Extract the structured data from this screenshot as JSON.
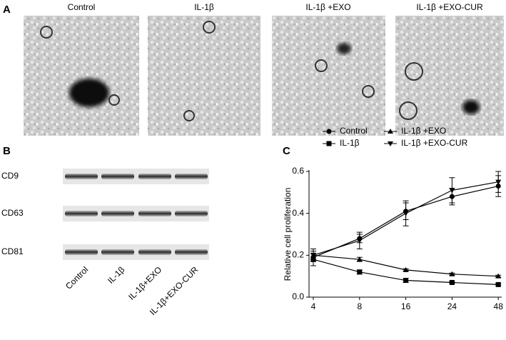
{
  "panels": {
    "a": {
      "label": "A",
      "images": [
        {
          "caption": "Control"
        },
        {
          "caption": "IL-1β"
        },
        {
          "caption": "IL-1β +EXO"
        },
        {
          "caption": "IL-1β +EXO-CUR"
        }
      ]
    },
    "b": {
      "label": "B",
      "markers": [
        "CD9",
        "CD63",
        "CD81"
      ],
      "lanes": [
        "Control",
        "IL-1β",
        "IL-1β+EXO",
        "IL-1β+EXO-CUR"
      ]
    }
  },
  "chart_data": {
    "type": "line",
    "panel_label": "C",
    "ylabel": "Relative cell proliferation",
    "categories": [
      "4",
      "8",
      "16",
      "24",
      "48"
    ],
    "ylim": [
      0,
      0.6
    ],
    "yticks": [
      {
        "value": 0,
        "label": "0.0"
      },
      0.2,
      0.4,
      0.6
    ],
    "series": [
      {
        "name": "Control",
        "color": "#000000",
        "marker": "circle",
        "values": [
          0.19,
          0.28,
          0.41,
          0.48,
          0.53
        ],
        "errors": [
          0.02,
          0.02,
          0.04,
          0.04,
          0.05
        ]
      },
      {
        "name": "IL-1β",
        "color": "#000000",
        "marker": "square",
        "values": [
          0.18,
          0.12,
          0.08,
          0.07,
          0.06
        ],
        "errors": [
          0.03,
          0.01,
          0.01,
          0.005,
          0.005
        ]
      },
      {
        "name": "IL-1β +EXO",
        "color": "#000000",
        "marker": "triangle-up",
        "values": [
          0.2,
          0.18,
          0.13,
          0.11,
          0.1
        ],
        "errors": [
          0.02,
          0.01,
          0.005,
          0.005,
          0.005
        ]
      },
      {
        "name": "IL-1β +EXO-CUR",
        "color": "#000000",
        "marker": "triangle-down",
        "values": [
          0.2,
          0.27,
          0.4,
          0.51,
          0.55
        ],
        "errors": [
          0.03,
          0.04,
          0.06,
          0.06,
          0.05
        ]
      }
    ]
  }
}
